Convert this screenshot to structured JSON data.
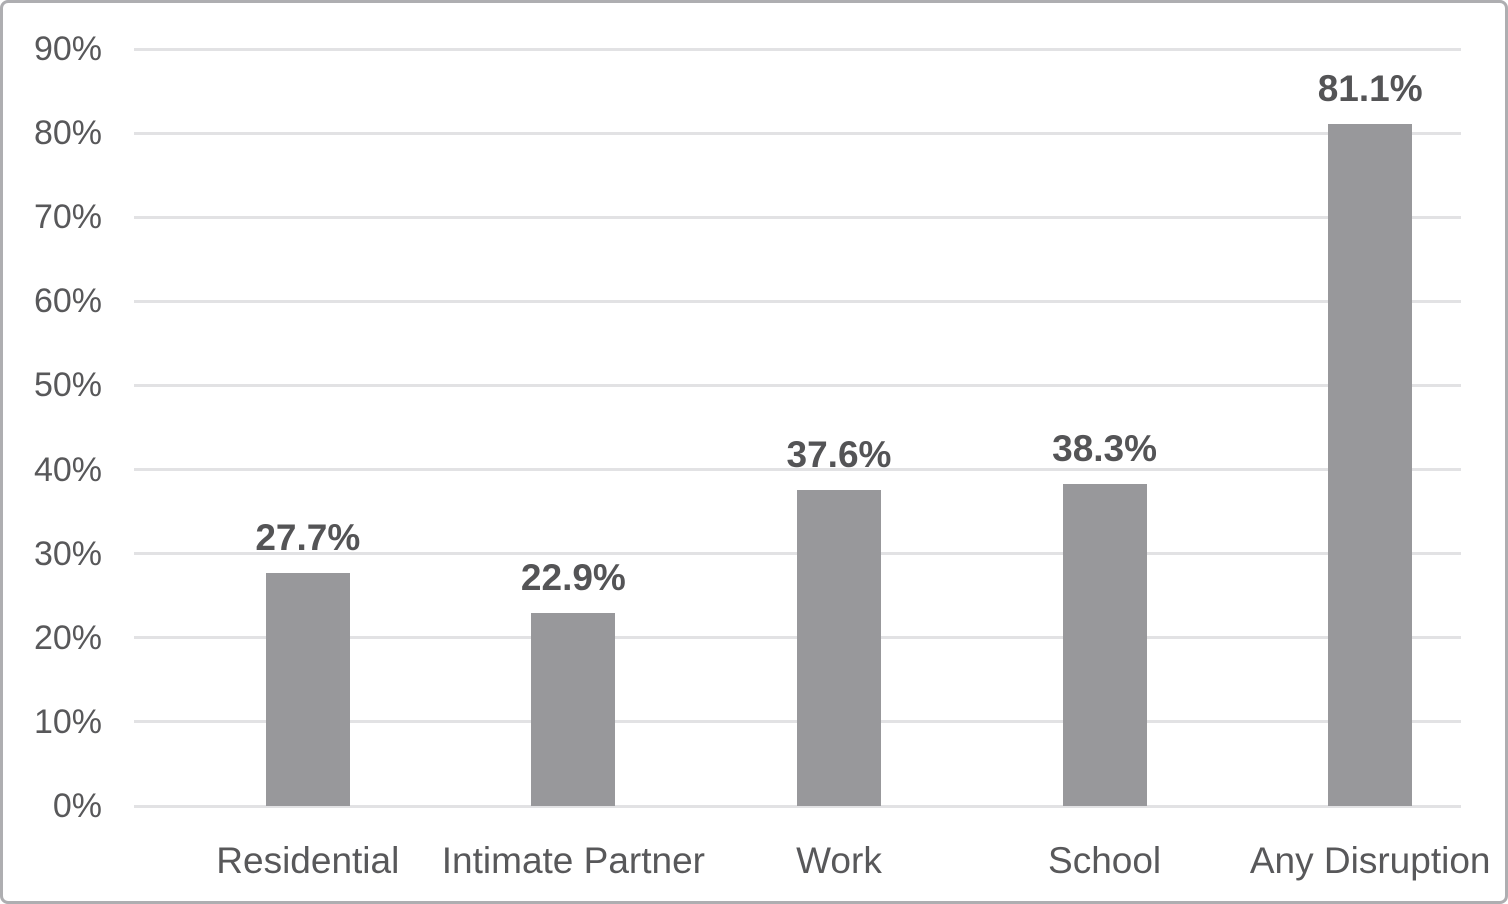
{
  "chart_data": {
    "type": "bar",
    "title": "",
    "xlabel": "",
    "ylabel": "",
    "categories": [
      "Residential",
      "Intimate Partner",
      "Work",
      "School",
      "Any Disruption"
    ],
    "values": [
      27.7,
      22.9,
      37.6,
      38.3,
      81.1
    ],
    "data_labels": [
      "27.7%",
      "22.9%",
      "37.6%",
      "38.3%",
      "81.1%"
    ],
    "ylim": [
      0,
      90
    ],
    "ytick_step": 10,
    "ytick_labels": [
      "0%",
      "10%",
      "20%",
      "30%",
      "40%",
      "50%",
      "60%",
      "70%",
      "80%",
      "90%"
    ],
    "grid": true,
    "legend": false,
    "series_name": "",
    "colors": {
      "bar": "#98989b",
      "gridline": "#e2e2e4",
      "tick_text": "#58585a",
      "data_label_text": "#545456",
      "frame_border": "#aeaeb1",
      "background": "#ffffff"
    }
  }
}
